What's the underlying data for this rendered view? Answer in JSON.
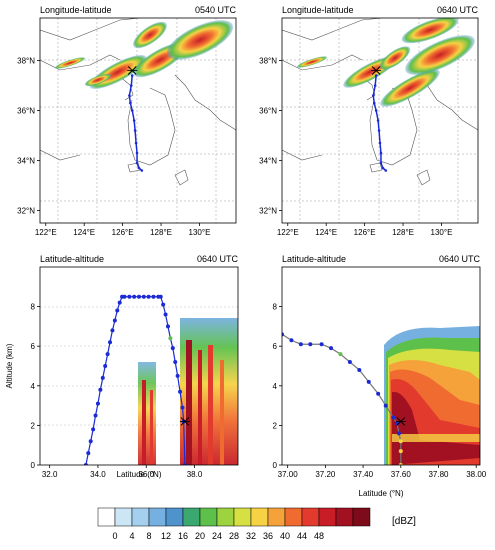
{
  "chart_data": [
    {
      "type": "map",
      "title": "Longitude-latitude",
      "time": "0540 UTC",
      "x_ticks": [
        "122°E",
        "124°E",
        "126°E",
        "128°E",
        "130°E"
      ],
      "y_ticks": [
        "32°N",
        "34°N",
        "36°N",
        "38°N"
      ],
      "xlim": [
        121.7,
        131.9
      ],
      "ylim": [
        31.5,
        39.7
      ],
      "grid": true,
      "track": [
        [
          126.5,
          37.4
        ],
        [
          126.45,
          37.0
        ],
        [
          126.35,
          36.6
        ],
        [
          126.4,
          36.3
        ],
        [
          126.5,
          36.0
        ],
        [
          126.6,
          35.6
        ],
        [
          126.65,
          35.2
        ],
        [
          126.7,
          34.7
        ],
        [
          126.75,
          34.3
        ],
        [
          126.75,
          33.9
        ],
        [
          126.85,
          33.7
        ],
        [
          127.0,
          33.6
        ]
      ],
      "marker": [
        126.5,
        37.6
      ]
    },
    {
      "type": "map",
      "title": "Longitude-latitude",
      "time": "0640 UTC",
      "x_ticks": [
        "122°E",
        "124°E",
        "126°E",
        "128°E",
        "130°E"
      ],
      "y_ticks": [
        "32°N",
        "34°N",
        "36°N",
        "38°N"
      ],
      "xlim": [
        121.7,
        131.9
      ],
      "ylim": [
        31.5,
        39.7
      ],
      "grid": true,
      "track": [
        [
          126.6,
          37.4
        ],
        [
          126.55,
          37.0
        ],
        [
          126.45,
          36.6
        ],
        [
          126.5,
          36.3
        ],
        [
          126.6,
          36.0
        ],
        [
          126.7,
          35.6
        ],
        [
          126.75,
          35.2
        ],
        [
          126.8,
          34.7
        ],
        [
          126.85,
          34.3
        ],
        [
          126.85,
          33.9
        ],
        [
          126.95,
          33.7
        ],
        [
          127.1,
          33.6
        ]
      ],
      "marker": [
        126.6,
        37.6
      ]
    },
    {
      "type": "line",
      "title": "Latitude-altitude",
      "time": "0640 UTC",
      "xlabel": "Latitude (°N)",
      "ylabel": "Altitude (km)",
      "x_ticks": [
        "32.0",
        "34.0",
        "36.0",
        "38.0"
      ],
      "y_ticks": [
        "0",
        "2",
        "4",
        "6",
        "8"
      ],
      "xlim": [
        31.6,
        39.8
      ],
      "ylim": [
        0,
        10
      ],
      "series": [
        {
          "x": [
            33.5,
            33.6,
            33.7,
            33.8,
            33.9,
            34.0,
            34.1,
            34.2,
            34.3,
            34.4,
            34.5,
            34.6,
            34.7,
            34.8,
            34.9,
            35.0,
            35.1,
            35.3,
            35.5,
            35.7,
            35.9,
            36.1,
            36.3,
            36.5,
            36.6,
            36.7,
            36.8,
            36.9,
            37.0,
            37.1,
            37.2,
            37.3,
            37.4,
            37.5,
            37.55,
            37.6
          ],
          "y": [
            0.0,
            0.6,
            1.2,
            1.8,
            2.5,
            3.1,
            3.8,
            4.4,
            5.0,
            5.6,
            6.2,
            6.8,
            7.3,
            7.8,
            8.2,
            8.5,
            8.5,
            8.5,
            8.5,
            8.5,
            8.5,
            8.5,
            8.5,
            8.5,
            8.5,
            8.1,
            7.6,
            7.0,
            6.4,
            5.9,
            5.2,
            4.5,
            3.7,
            2.9,
            2.2,
            0.0
          ]
        }
      ],
      "marker": [
        37.6,
        2.2
      ]
    },
    {
      "type": "line",
      "title": "Latitude-altitude",
      "time": "0640 UTC",
      "xlabel": "Latitude (°N)",
      "x_ticks": [
        "37.00",
        "37.20",
        "37.40",
        "37.60",
        "37.80",
        "38.00"
      ],
      "y_ticks": [
        "0",
        "2",
        "4",
        "6",
        "8"
      ],
      "xlim": [
        36.97,
        38.02
      ],
      "ylim": [
        0,
        10
      ],
      "series": [
        {
          "x": [
            36.97,
            37.02,
            37.07,
            37.12,
            37.18,
            37.23,
            37.28,
            37.33,
            37.38,
            37.43,
            37.48,
            37.52,
            37.56,
            37.58,
            37.59,
            37.6,
            37.6,
            37.6
          ],
          "y": [
            6.6,
            6.3,
            6.1,
            6.1,
            6.1,
            5.9,
            5.6,
            5.2,
            4.8,
            4.2,
            3.6,
            3.0,
            2.4,
            2.1,
            1.6,
            1.2,
            0.7,
            0.0
          ]
        }
      ],
      "marker": [
        37.6,
        2.2
      ]
    }
  ],
  "colorbar": {
    "ticks": [
      "0",
      "4",
      "8",
      "12",
      "16",
      "20",
      "24",
      "28",
      "32",
      "36",
      "40",
      "44",
      "48"
    ],
    "unit": "[dBZ]",
    "colors": [
      "#ffffff",
      "#cde6f6",
      "#a5cfee",
      "#76b0e0",
      "#4f93cc",
      "#3aa86f",
      "#5cc04a",
      "#9dd33e",
      "#d7e043",
      "#f7d244",
      "#f6a23a",
      "#ef6b30",
      "#e23a2d",
      "#c81d26",
      "#a11121",
      "#7d0b1a"
    ]
  }
}
